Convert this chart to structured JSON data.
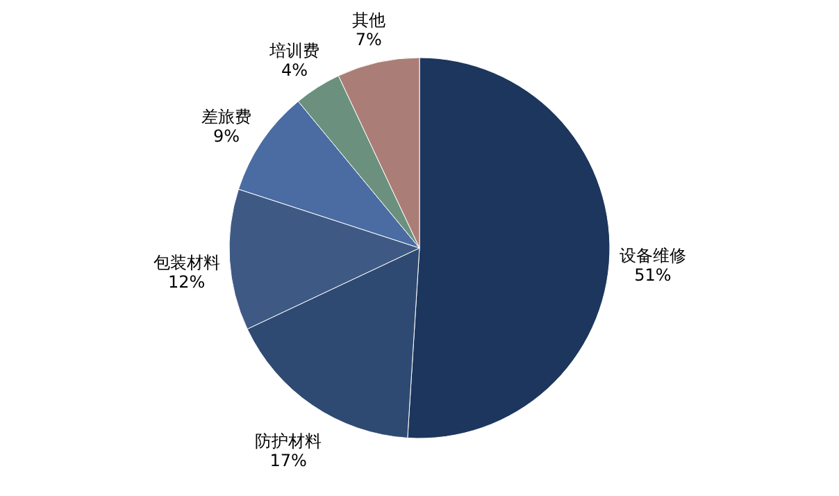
{
  "chart_data": {
    "type": "pie",
    "categories": [
      "设备维修",
      "防护材料",
      "包装材料",
      "差旅费",
      "培训费",
      "其他"
    ],
    "values": [
      51,
      17,
      12,
      9,
      4,
      7
    ],
    "value_labels": [
      "51%",
      "17%",
      "12%",
      "9%",
      "4%",
      "7%"
    ],
    "colors": [
      "#1d365d",
      "#2f4a72",
      "#3e5a84",
      "#4a6ca3",
      "#6b917e",
      "#aa7e76"
    ]
  }
}
